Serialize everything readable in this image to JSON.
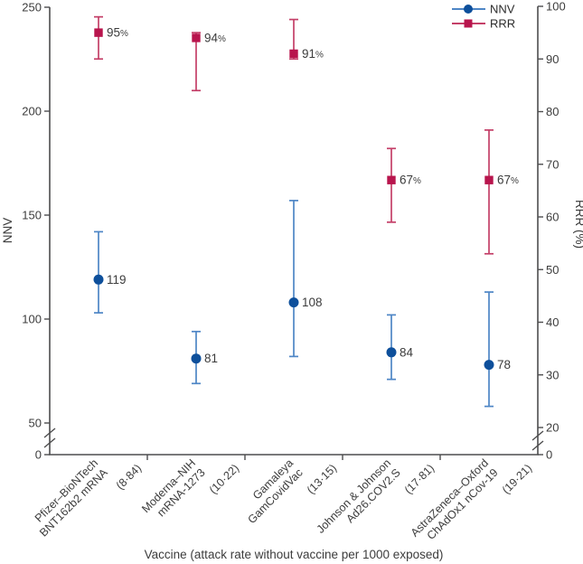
{
  "figure_title": "",
  "chart_data": {
    "type": "scatter",
    "title": "",
    "xlabel": "Vaccine (attack rate without vaccine per 1000 exposed)",
    "left_axis": {
      "label": "NNV",
      "ticks": [
        250,
        200,
        150,
        100,
        50
      ],
      "zero_label": "0",
      "broken_axis": true,
      "range": [
        50,
        250
      ]
    },
    "right_axis": {
      "label": "RRR (%)",
      "ticks": [
        100,
        90,
        80,
        70,
        60,
        50,
        40,
        30,
        20
      ],
      "zero_label": "0",
      "broken_axis": true,
      "range": [
        20,
        100
      ]
    },
    "grid": false,
    "legend_position": "top-right",
    "legend": [
      {
        "label": "NNV",
        "marker": "circle"
      },
      {
        "label": "RRR",
        "marker": "square"
      }
    ],
    "categories": [
      {
        "lines": [
          "Pfizer–BioNTech",
          "BNT162b2 mRNA"
        ],
        "attack_rate": "(8·84)"
      },
      {
        "lines": [
          "Moderna–NIH",
          "mRNA-1273"
        ],
        "attack_rate": "(10·22)"
      },
      {
        "lines": [
          "Gamaleya",
          "GamCovidVac"
        ],
        "attack_rate": "(13·15)"
      },
      {
        "lines": [
          "Johnson & Johnson",
          "Ad26.COV2.S"
        ],
        "attack_rate": "(17·81)"
      },
      {
        "lines": [
          "AstraZeneca–Oxford",
          "ChAdOx1 nCov-19"
        ],
        "attack_rate": "(19·21)"
      }
    ],
    "series": [
      {
        "name": "NNV",
        "axis": "left",
        "marker": "circle",
        "marker_color": "#0d4f9b",
        "line_color": "#4e86c6",
        "values": [
          119,
          81,
          108,
          84,
          78
        ],
        "ci_low": [
          103,
          69,
          82,
          71,
          58
        ],
        "ci_high": [
          142,
          94,
          157,
          102,
          113
        ],
        "labels": [
          "119",
          "81",
          "108",
          "84",
          "78"
        ]
      },
      {
        "name": "RRR",
        "axis": "right",
        "marker": "square",
        "marker_color": "#b8154d",
        "line_color": "#c43f68",
        "values": [
          95,
          94,
          91,
          67,
          67
        ],
        "ci_low": [
          90,
          84,
          90,
          59,
          53
        ],
        "ci_high": [
          98,
          95,
          97.5,
          73,
          76.5
        ],
        "labels": [
          "95%",
          "94%",
          "91%",
          "67%",
          "67%"
        ]
      }
    ],
    "colors": {
      "axis": "#4d4d4e",
      "text": "#3c3c3c"
    }
  }
}
